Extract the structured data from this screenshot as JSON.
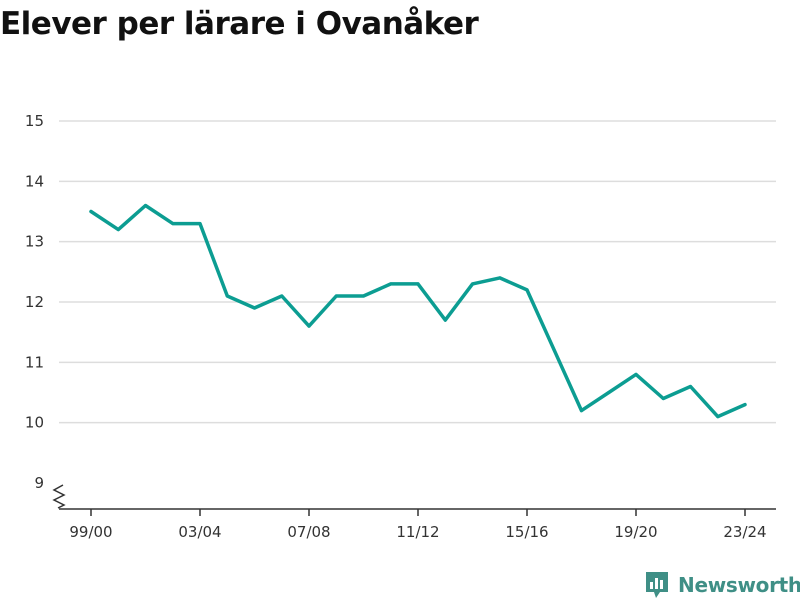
{
  "colors": {
    "line": "#0c9d92",
    "grid": "#dddddd",
    "axis": "#333333",
    "brand": "#3f8f86"
  },
  "brand": {
    "name": "Newsworthy",
    "icon": "newsworthy-logo-icon"
  },
  "chart_data": {
    "type": "line",
    "title": "Elever per lärare i Ovanåker",
    "xlabel": "",
    "ylabel": "",
    "categories": [
      "99/00",
      "00/01",
      "01/02",
      "02/03",
      "03/04",
      "04/05",
      "05/06",
      "06/07",
      "07/08",
      "08/09",
      "09/10",
      "10/11",
      "11/12",
      "12/13",
      "13/14",
      "14/15",
      "15/16",
      "16/17",
      "17/18",
      "18/19",
      "19/20",
      "20/21",
      "21/22",
      "22/23",
      "23/24"
    ],
    "x_tick_labels": [
      "99/00",
      "03/04",
      "07/08",
      "11/12",
      "15/16",
      "19/20",
      "23/24"
    ],
    "series": [
      {
        "values": [
          13.5,
          13.2,
          13.6,
          13.3,
          13.3,
          12.1,
          11.9,
          12.1,
          11.6,
          12.1,
          12.1,
          12.3,
          12.3,
          11.7,
          12.3,
          12.4,
          12.2,
          11.2,
          10.2,
          10.5,
          10.8,
          10.4,
          10.6,
          10.1,
          10.3
        ]
      }
    ],
    "y_ticks": [
      9,
      10,
      11,
      12,
      13,
      14,
      15
    ],
    "ylim": [
      9,
      15
    ],
    "y_axis_break": true,
    "grid": true
  }
}
